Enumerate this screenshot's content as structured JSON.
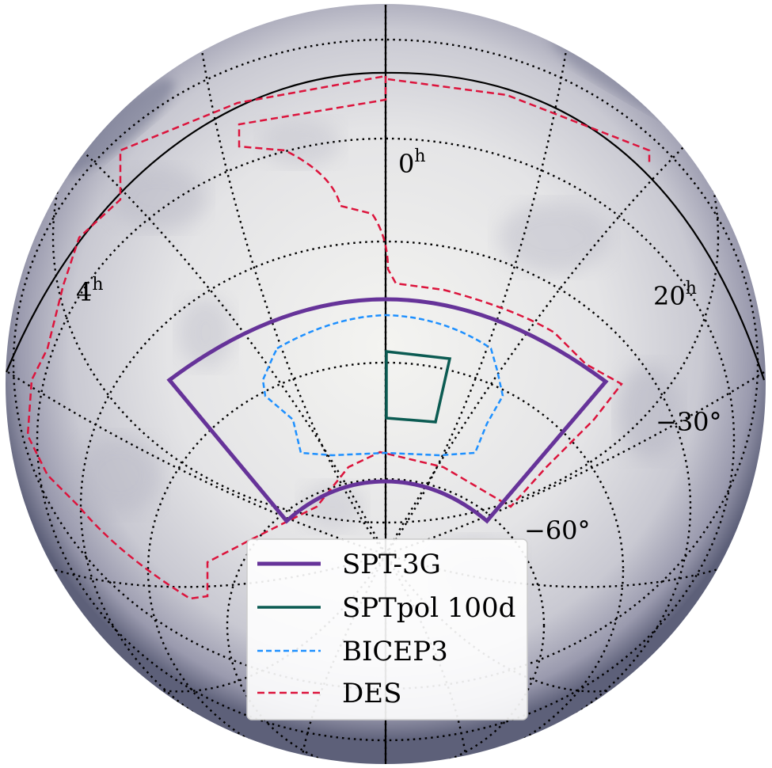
{
  "map": {
    "projection": "orthographic",
    "background": "sky map",
    "colors": {
      "sky_light": "#f2f2ee",
      "sky_dark": "#2a2e4a",
      "grid": "#000000"
    }
  },
  "labels": {
    "ra_0": {
      "main": "0",
      "sup": "h"
    },
    "ra_4": {
      "main": "4",
      "sup": "h"
    },
    "ra_20": {
      "main": "20",
      "sup": "h"
    },
    "dec_30": "−30°",
    "dec_60": "−60°"
  },
  "regions": [
    {
      "name": "SPT-3G",
      "color": "#663399",
      "style": "solid"
    },
    {
      "name": "SPTpol 100d",
      "color": "#0b5b52",
      "style": "solid"
    },
    {
      "name": "BICEP3",
      "color": "#1e90ff",
      "style": "dashed"
    },
    {
      "name": "DES",
      "color": "#dc143c",
      "style": "dashed"
    }
  ],
  "legend": {
    "placement": "bottom-center",
    "entries": [
      "SPT-3G",
      "SPTpol 100d",
      "BICEP3",
      "DES"
    ]
  }
}
